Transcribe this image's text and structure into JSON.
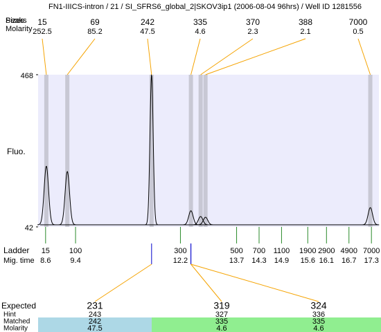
{
  "header": {
    "title": "FN1-IIICS-intron / 21 / SI_SFRS6_global_2|SKOV3ip1 (2006-08-04 96hrs) / Well ID 1281556"
  },
  "chart_data": {
    "type": "electropherogram",
    "y_label": "Fluo.",
    "ylim": [
      42,
      468
    ],
    "yticks": [
      42,
      468
    ],
    "xlim": [
      8.4,
      17.5
    ],
    "peak_row_labels": [
      "Peaks",
      "Sizes",
      "Molarity"
    ],
    "peaks": {
      "sizes": [
        15,
        69,
        242,
        335,
        370,
        388,
        7000
      ],
      "molarity": [
        252.5,
        85.2,
        47.5,
        4.6,
        2.3,
        2.1,
        0.5
      ],
      "times": [
        8.62,
        9.18,
        11.43,
        12.48,
        12.74,
        12.87,
        17.27
      ],
      "heights": [
        212,
        197,
        468,
        87,
        71,
        69,
        96
      ]
    },
    "ladder": {
      "label": "Ladder",
      "time_label": "Mig. time",
      "sizes": [
        15,
        100,
        300,
        500,
        700,
        1100,
        1900,
        2900,
        4900,
        7000
      ],
      "times": [
        8.6,
        9.4,
        12.2,
        13.7,
        14.3,
        14.9,
        15.6,
        16.1,
        16.7,
        17.3
      ]
    }
  },
  "expected_table": {
    "row_labels": [
      "Expected",
      "Hint",
      "Matched",
      "Molarity"
    ],
    "expected": [
      231,
      319,
      324
    ],
    "hint": [
      243,
      327,
      336
    ],
    "matched": [
      242,
      335,
      335
    ],
    "molarity": [
      47.5,
      4.6,
      4.6
    ]
  }
}
